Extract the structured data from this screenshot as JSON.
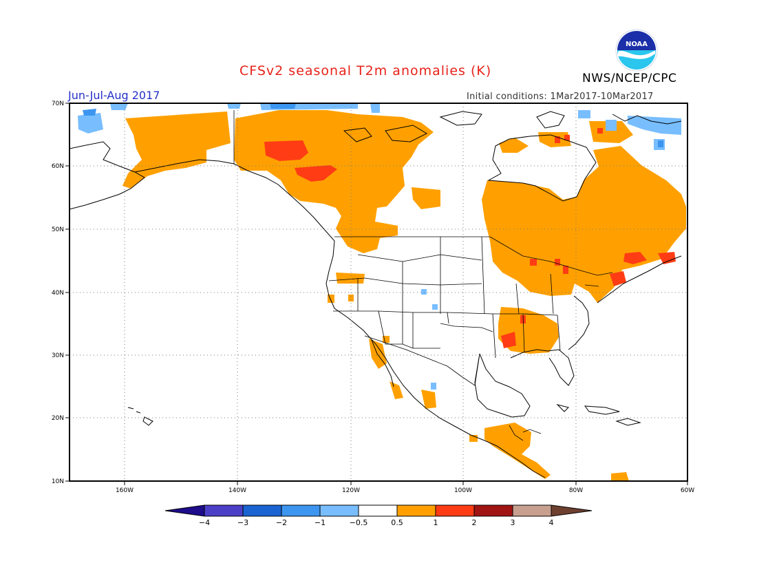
{
  "header": {
    "title": "CFSv2 seasonal T2m anomalies (K)",
    "agency": "NWS/NCEP/CPC",
    "season": "Jun-Jul-Aug 2017",
    "initial_conditions": "Initial conditions: 1Mar2017-10Mar2017",
    "logo_text": "NOAA"
  },
  "axes": {
    "lon_labels": [
      "160W",
      "140W",
      "120W",
      "100W",
      "80W",
      "60W"
    ],
    "lat_labels": [
      "70N",
      "60N",
      "50N",
      "40N",
      "30N",
      "20N",
      "10N"
    ]
  },
  "colorbar": {
    "labels": [
      "−4",
      "−3",
      "−2",
      "−1",
      "−0.5",
      "0.5",
      "1",
      "2",
      "3",
      "4"
    ],
    "colors": [
      "#1e0c8a",
      "#4b3fc8",
      "#1a64d2",
      "#3c96f0",
      "#78beff",
      "#ffffff",
      "#ffa000",
      "#ff3c14",
      "#a01414",
      "#c8a090",
      "#6e4030"
    ]
  },
  "legend_colors": {
    "warm_light": "#ffa000",
    "warm_strong": "#ff3c14",
    "cool_light": "#78beff",
    "cool_medium": "#3c96f0",
    "cool_strong": "#1a64d2",
    "cool_extreme": "#4b3fc8"
  }
}
